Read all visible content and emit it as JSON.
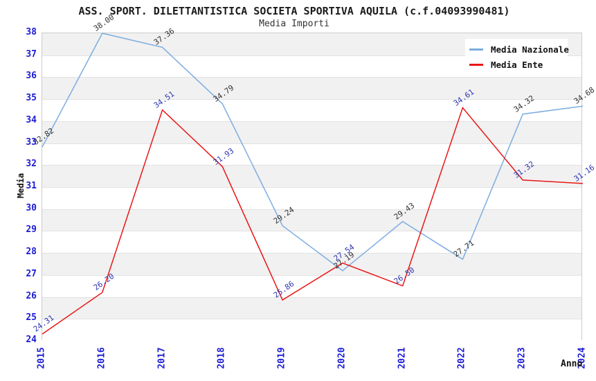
{
  "title": "ASS. SPORT. DILETTANTISTICA SOCIETA SPORTIVA AQUILA (c.f.04093990481)",
  "subtitle": "Media Importi",
  "axes": {
    "y_label": "Media",
    "x_label": "Anno",
    "y_ticks": [
      38,
      37,
      36,
      35,
      34,
      33,
      32,
      31,
      30,
      29,
      28,
      27,
      26,
      25,
      24
    ],
    "x_ticks": [
      "2015",
      "2016",
      "2017",
      "2018",
      "2019",
      "2020",
      "2021",
      "2022",
      "2023",
      "2024"
    ]
  },
  "legend": {
    "position": "top-right",
    "items": [
      {
        "label": "Media Nazionale",
        "color": "#7bade0"
      },
      {
        "label": "Media Ente",
        "color": "#ea1515"
      }
    ]
  },
  "colors": {
    "tick_label": "#1c1cd6",
    "axis_title": "#111111",
    "band_gray": "#f1f1f1",
    "gridline": "#e2e2e2",
    "plot_border": "#cccccc",
    "nazionale_line": "#7bade0",
    "ente_line": "#ea1515",
    "nazionale_point_label": "#333333",
    "ente_point_label": "#2e35b0"
  },
  "chart_data": {
    "type": "line",
    "title": "ASS. SPORT. DILETTANTISTICA SOCIETA SPORTIVA AQUILA (c.f.04093990481)",
    "subtitle": "Media Importi",
    "xlabel": "Anno",
    "ylabel": "Media",
    "x": [
      2015,
      2016,
      2017,
      2018,
      2019,
      2020,
      2021,
      2022,
      2023,
      2024
    ],
    "ylim": [
      24,
      38
    ],
    "grid": "horizontal-alternating-bands",
    "legend_position": "top-right",
    "series": [
      {
        "name": "Media Nazionale",
        "color": "#7bade0",
        "label_color": "#333333",
        "values": [
          32.82,
          38.0,
          37.36,
          34.79,
          29.24,
          27.19,
          29.43,
          27.71,
          34.32,
          34.68
        ]
      },
      {
        "name": "Media Ente",
        "color": "#ea1515",
        "label_color": "#2e35b0",
        "values": [
          24.31,
          26.2,
          34.51,
          31.93,
          25.86,
          27.54,
          26.5,
          34.61,
          31.32,
          31.16
        ]
      }
    ]
  }
}
